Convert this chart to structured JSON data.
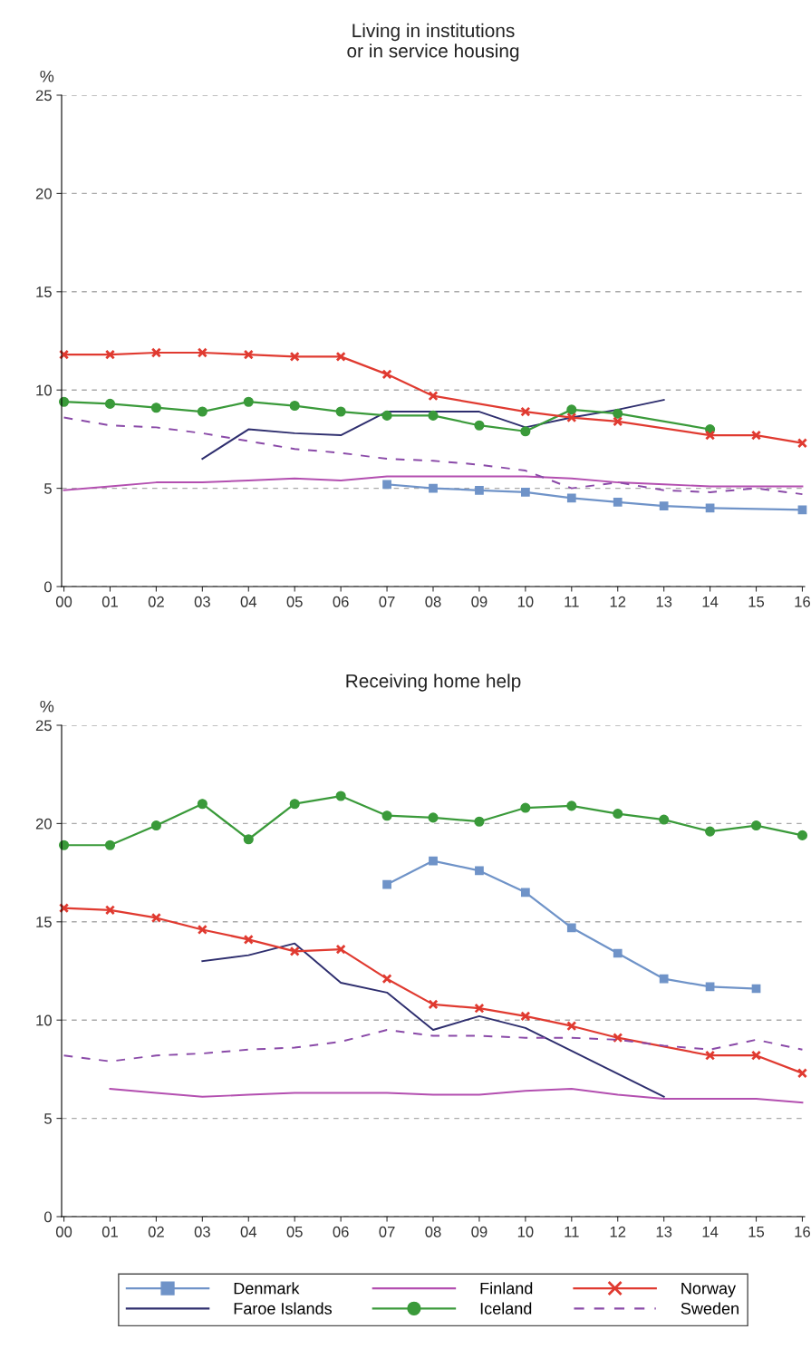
{
  "chart_data": [
    {
      "type": "line",
      "title": "Living in institutions\nor in service housing",
      "ylabel": "%",
      "categories": [
        "00",
        "01",
        "02",
        "03",
        "04",
        "05",
        "06",
        "07",
        "08",
        "09",
        "10",
        "11",
        "12",
        "13",
        "14",
        "15",
        "16"
      ],
      "ylim": [
        0,
        25
      ],
      "yticks": [
        0,
        5,
        10,
        15,
        20,
        25
      ],
      "grid": "y",
      "legend": false,
      "series": [
        {
          "color": "#6f93c8",
          "marker": "square",
          "values": [
            null,
            null,
            null,
            null,
            null,
            null,
            null,
            5.2,
            5.0,
            4.9,
            4.8,
            4.5,
            4.3,
            4.1,
            4.0,
            null,
            3.9
          ]
        },
        {
          "color": "#2e2e6e",
          "values": [
            null,
            null,
            null,
            6.5,
            8.0,
            7.8,
            7.7,
            8.9,
            8.9,
            8.9,
            8.1,
            8.6,
            9.0,
            9.5,
            null,
            null,
            null
          ]
        },
        {
          "color": "#b34fb0",
          "values": [
            4.9,
            5.1,
            5.3,
            5.3,
            5.4,
            5.5,
            5.4,
            5.6,
            5.6,
            5.6,
            5.6,
            5.5,
            5.3,
            5.2,
            5.1,
            5.1,
            5.1
          ]
        },
        {
          "color": "#3a9a3a",
          "marker": "circle",
          "values": [
            9.4,
            9.3,
            9.1,
            8.9,
            9.4,
            9.2,
            8.9,
            8.7,
            8.7,
            8.2,
            7.9,
            9.0,
            8.8,
            null,
            8.0,
            null,
            null
          ]
        },
        {
          "color": "#e03a30",
          "marker": "cross",
          "values": [
            11.8,
            11.8,
            11.9,
            11.9,
            11.8,
            11.7,
            11.7,
            10.8,
            9.7,
            null,
            8.9,
            8.6,
            8.4,
            null,
            7.7,
            7.7,
            7.3
          ]
        },
        {
          "color": "#8a4aa8",
          "line_style": "dashed",
          "values": [
            8.6,
            8.2,
            8.1,
            7.8,
            7.4,
            7.0,
            6.8,
            6.5,
            6.4,
            6.2,
            5.9,
            5.0,
            5.3,
            4.9,
            4.8,
            5.0,
            4.7
          ]
        }
      ]
    },
    {
      "type": "line",
      "title": "Receiving home help",
      "ylabel": "%",
      "categories": [
        "00",
        "01",
        "02",
        "03",
        "04",
        "05",
        "06",
        "07",
        "08",
        "09",
        "10",
        "11",
        "12",
        "13",
        "14",
        "15",
        "16"
      ],
      "ylim": [
        0,
        25
      ],
      "yticks": [
        0,
        5,
        10,
        15,
        20,
        25
      ],
      "grid": "y",
      "legend": "bottom",
      "series": [
        {
          "name": "Denmark",
          "color": "#6f93c8",
          "marker": "square",
          "values": [
            null,
            null,
            null,
            null,
            null,
            null,
            null,
            16.9,
            18.1,
            17.6,
            16.5,
            14.7,
            13.4,
            12.1,
            11.7,
            11.6,
            null
          ]
        },
        {
          "name": "Faroe Islands",
          "color": "#2e2e6e",
          "values": [
            null,
            null,
            null,
            13.0,
            13.3,
            13.9,
            11.9,
            11.4,
            9.5,
            10.2,
            9.6,
            null,
            null,
            6.1,
            null,
            null,
            null
          ]
        },
        {
          "name": "Finland",
          "color": "#b34fb0",
          "values": [
            null,
            6.5,
            6.3,
            6.1,
            6.2,
            6.3,
            6.3,
            6.3,
            6.2,
            6.2,
            6.4,
            6.5,
            6.2,
            6.0,
            6.0,
            6.0,
            5.8
          ]
        },
        {
          "name": "Iceland",
          "color": "#3a9a3a",
          "marker": "circle",
          "values": [
            18.9,
            18.9,
            19.9,
            21.0,
            19.2,
            21.0,
            21.4,
            20.4,
            20.3,
            20.1,
            20.8,
            20.9,
            20.5,
            20.2,
            19.6,
            19.9,
            19.4
          ]
        },
        {
          "name": "Norway",
          "color": "#e03a30",
          "marker": "cross",
          "values": [
            15.7,
            15.6,
            15.2,
            14.6,
            14.1,
            13.5,
            13.6,
            12.1,
            10.8,
            10.6,
            10.2,
            9.7,
            9.1,
            null,
            8.2,
            8.2,
            7.3
          ]
        },
        {
          "name": "Sweden",
          "color": "#8a4aa8",
          "line_style": "dashed",
          "values": [
            8.2,
            7.9,
            8.2,
            8.3,
            8.5,
            8.6,
            8.9,
            9.5,
            9.2,
            9.2,
            9.1,
            9.1,
            9.0,
            8.7,
            8.5,
            9.0,
            8.5
          ]
        }
      ]
    }
  ]
}
